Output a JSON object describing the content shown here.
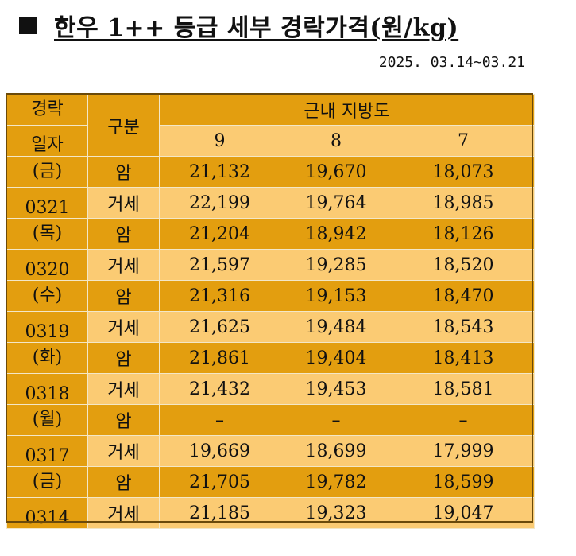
{
  "title": "한우 1++ 등급 세부 경락가격(원/kg)",
  "date_range": "2025. 03.14~03.21",
  "header": {
    "col_date_line1": "경락",
    "col_date_line2": "일자",
    "col_type": "구분",
    "group": "근내 지방도",
    "grade_9": "9",
    "grade_8": "8",
    "grade_7": "7"
  },
  "days": [
    {
      "dow": "(금)",
      "date": "0321",
      "rows": [
        {
          "type": "암",
          "v9": "21,132",
          "v8": "19,670",
          "v7": "18,073"
        },
        {
          "type": "거세",
          "v9": "22,199",
          "v8": "19,764",
          "v7": "18,985"
        }
      ]
    },
    {
      "dow": "(목)",
      "date": "0320",
      "rows": [
        {
          "type": "암",
          "v9": "21,204",
          "v8": "18,942",
          "v7": "18,126"
        },
        {
          "type": "거세",
          "v9": "21,597",
          "v8": "19,285",
          "v7": "18,520"
        }
      ]
    },
    {
      "dow": "(수)",
      "date": "0319",
      "rows": [
        {
          "type": "암",
          "v9": "21,316",
          "v8": "19,153",
          "v7": "18,470"
        },
        {
          "type": "거세",
          "v9": "21,625",
          "v8": "19,484",
          "v7": "18,543"
        }
      ]
    },
    {
      "dow": "(화)",
      "date": "0318",
      "rows": [
        {
          "type": "암",
          "v9": "21,861",
          "v8": "19,404",
          "v7": "18,413"
        },
        {
          "type": "거세",
          "v9": "21,432",
          "v8": "19,453",
          "v7": "18,581"
        }
      ]
    },
    {
      "dow": "(월)",
      "date": "0317",
      "rows": [
        {
          "type": "암",
          "v9": "–",
          "v8": "–",
          "v7": "–"
        },
        {
          "type": "거세",
          "v9": "19,669",
          "v8": "18,699",
          "v7": "17,999"
        }
      ]
    },
    {
      "dow": "(금)",
      "date": "0314",
      "rows": [
        {
          "type": "암",
          "v9": "21,705",
          "v8": "19,782",
          "v7": "18,599"
        },
        {
          "type": "거세",
          "v9": "21,185",
          "v8": "19,323",
          "v7": "19,047"
        }
      ]
    }
  ]
}
